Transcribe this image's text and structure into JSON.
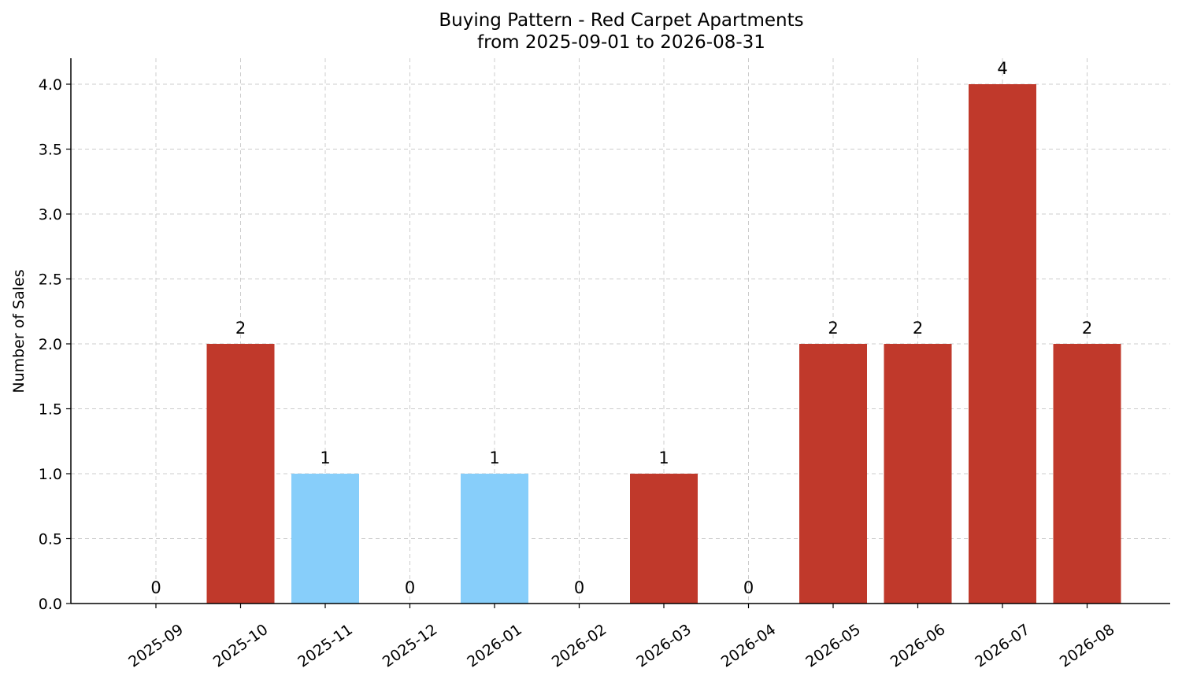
{
  "chart_data": {
    "type": "bar",
    "title": "Buying Pattern - Red Carpet Apartments",
    "subtitle": "from 2025-09-01 to 2026-08-31",
    "xlabel": "",
    "ylabel": "Number of Sales",
    "categories": [
      "2025-09",
      "2025-10",
      "2025-11",
      "2025-12",
      "2026-01",
      "2026-02",
      "2026-03",
      "2026-04",
      "2026-05",
      "2026-06",
      "2026-07",
      "2026-08"
    ],
    "values": [
      0,
      2,
      1,
      0,
      1,
      0,
      1,
      0,
      2,
      2,
      4,
      2
    ],
    "data_labels": [
      "0",
      "2",
      "1",
      "0",
      "1",
      "0",
      "1",
      "0",
      "2",
      "2",
      "4",
      "2"
    ],
    "bar_colors": [
      "#c0392b",
      "#c0392b",
      "#87cefa",
      "#c0392b",
      "#87cefa",
      "#c0392b",
      "#c0392b",
      "#c0392b",
      "#c0392b",
      "#c0392b",
      "#c0392b",
      "#c0392b"
    ],
    "ylim": [
      0,
      4.2
    ],
    "yticks": [
      0.0,
      0.5,
      1.0,
      1.5,
      2.0,
      2.5,
      3.0,
      3.5,
      4.0
    ],
    "ytick_labels": [
      "0.0",
      "0.5",
      "1.0",
      "1.5",
      "2.0",
      "2.5",
      "3.0",
      "3.5",
      "4.0"
    ],
    "grid": true,
    "legend": "none"
  }
}
